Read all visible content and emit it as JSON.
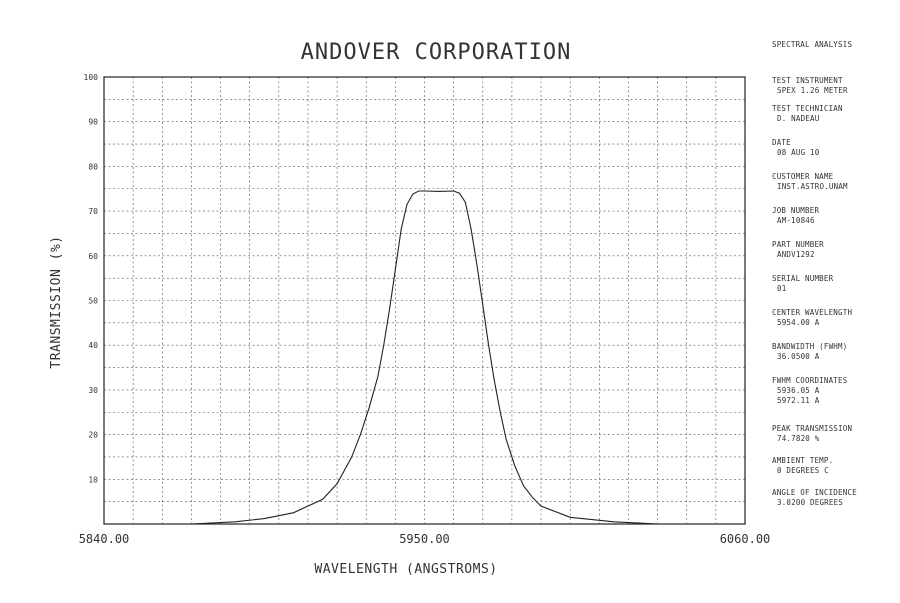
{
  "chart_data": {
    "type": "line",
    "title": "ANDOVER CORPORATION",
    "xlabel": "WAVELENGTH (ANGSTROMS)",
    "ylabel": "TRANSMISSION (%)",
    "xlim": [
      5840,
      6060
    ],
    "ylim": [
      0,
      100
    ],
    "x_tick_labels": [
      "5840.00",
      "5950.00",
      "6060.00"
    ],
    "x_tick_values": [
      5840,
      5950,
      6060
    ],
    "y_ticks": [
      10,
      20,
      30,
      40,
      50,
      60,
      70,
      80,
      90,
      100
    ],
    "grid": true,
    "series": [
      {
        "x": [
          5840,
          5870,
          5885,
          5895,
          5905,
          5915,
          5920,
          5925,
          5928,
          5931,
          5934,
          5936,
          5938,
          5940,
          5942,
          5944,
          5946,
          5948,
          5950,
          5955,
          5960,
          5962,
          5964,
          5966,
          5968,
          5970,
          5972,
          5974,
          5976,
          5978,
          5981,
          5984,
          5987,
          5990,
          6000,
          6015,
          6030,
          6060
        ],
        "y": [
          0,
          0,
          0.5,
          1.2,
          2.5,
          5.5,
          9,
          15,
          20,
          26,
          33,
          40,
          48,
          57,
          66,
          71.5,
          73.8,
          74.5,
          74.5,
          74.4,
          74.5,
          74,
          72,
          66,
          58,
          49,
          40,
          32,
          25,
          19,
          13,
          8.5,
          6,
          4,
          1.5,
          0.5,
          0,
          0
        ]
      }
    ]
  },
  "side_panel": {
    "header": "SPECTRAL ANALYSIS",
    "fields": [
      {
        "label": "TEST INSTRUMENT",
        "values": [
          "SPEX 1.26 METER"
        ]
      },
      {
        "label": "TEST TECHNICIAN",
        "values": [
          "D. NADEAU"
        ]
      },
      {
        "label": "DATE",
        "values": [
          "08 AUG 10"
        ]
      },
      {
        "label": "CUSTOMER NAME",
        "values": [
          "INST.ASTRO.UNAM"
        ]
      },
      {
        "label": "JOB NUMBER",
        "values": [
          "AM-10846"
        ]
      },
      {
        "label": "PART NUMBER",
        "values": [
          "ANDV1292"
        ]
      },
      {
        "label": "SERIAL NUMBER",
        "values": [
          "01"
        ]
      },
      {
        "label": "CENTER WAVELENGTH",
        "values": [
          "5954.00 A"
        ]
      },
      {
        "label": "BANDWIDTH (FWHM)",
        "values": [
          "36.0500 A"
        ]
      },
      {
        "label": "FWHM COORDINATES",
        "values": [
          "5936.05 A",
          "5972.11 A"
        ]
      },
      {
        "label": "PEAK TRANSMISSION",
        "values": [
          "74.7820 %"
        ]
      },
      {
        "label": "AMBIENT TEMP.",
        "values": [
          "0 DEGREES C"
        ]
      },
      {
        "label": "ANGLE OF INCIDENCE",
        "values": [
          "3.0200 DEGREES"
        ]
      }
    ]
  }
}
